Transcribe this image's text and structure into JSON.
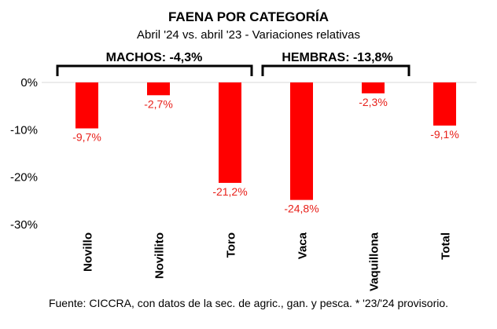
{
  "chart_data": {
    "type": "bar",
    "title": "FAENA POR CATEGORÍA",
    "subtitle": "Abril '24 vs. abril '23 - Variaciones relativas",
    "categories": [
      "Novillo",
      "Novillito",
      "Toro",
      "Vaca",
      "Vaquillona",
      "Total"
    ],
    "values": [
      -9.7,
      -2.7,
      -21.2,
      -24.8,
      -2.3,
      -9.1
    ],
    "data_labels": [
      "-9,7%",
      "-2,7%",
      "-21,2%",
      "-24,8%",
      "-2,3%",
      "-9,1%"
    ],
    "ylim": [
      -30,
      0
    ],
    "yticks": [
      0,
      -10,
      -20,
      -30
    ],
    "ytick_labels": [
      "0%",
      "-10%",
      "-20%",
      "-30%"
    ],
    "groups": [
      {
        "label": "MACHOS: -4,3%",
        "categories": [
          "Novillo",
          "Novillito",
          "Toro"
        ]
      },
      {
        "label": "HEMBRAS: -13,8%",
        "categories": [
          "Vaca",
          "Vaquillona"
        ]
      }
    ],
    "bar_color": "#ff0000",
    "label_color": "#e8201a",
    "xlabel": "",
    "ylabel": "",
    "source": "Fuente: CICCRA, con datos de la sec. de agric., gan. y pesca. * '23/'24 provisorio."
  }
}
